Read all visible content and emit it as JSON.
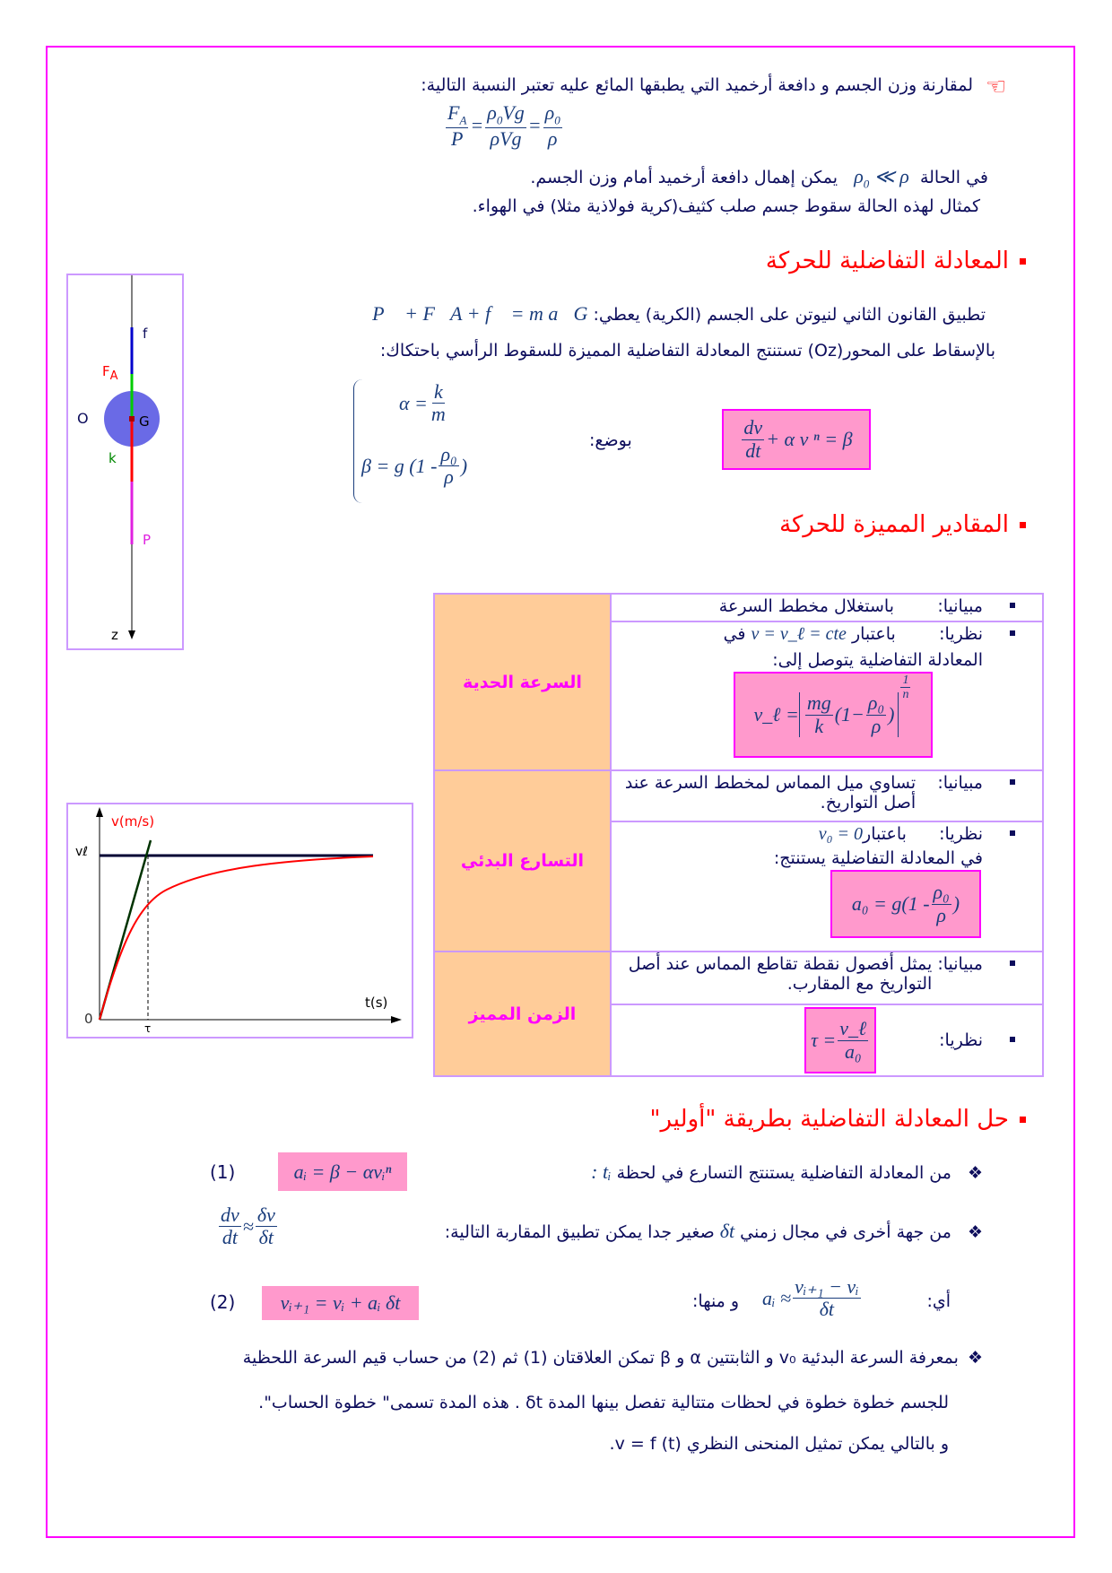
{
  "intro": {
    "line1": "لمقارنة وزن الجسم و دافعة أرخميد التي يطبقها المائع عليه تعتبر النسبة التالية:",
    "ratio": {
      "n1": "F",
      "n1sub": "A",
      "d1": "P",
      "n2": "ρ",
      "n2sub": "0",
      "n2b": "Vg",
      "d2": "ρVg",
      "n3": "ρ",
      "n3sub": "0",
      "d3": "ρ"
    },
    "line2a": "في الحالة",
    "cond": "ρ",
    "condsub": "0",
    "condb": " ≪ ρ",
    "line2b": "يمكن إهمال دافعة أرخميد أمام وزن الجسم.",
    "line3": "كمثال لهذه الحالة سقوط جسم صلب كثيف(كرية فولاذية مثلا) في الهواء."
  },
  "icons": {
    "pointing_hand": "pointing-hand-icon",
    "bullet": "square-bullet",
    "diamond": "diamond-bullet"
  },
  "section1": {
    "title": "المعادلة التفاضلية للحركة",
    "newton_text": "تطبيق القانون الثاني لنيوتن على الجسم (الكرية) يعطي:",
    "newton_eq": "P⃗ + F⃗A + f⃗ = m a⃗G",
    "projection": "بالإسقاط على المحور(Oz) تستنتج المعادلة التفاضلية المميزة للسقوط الرأسي باحتكاك:",
    "alpha_lhs": "α =",
    "alpha_num": "k",
    "alpha_den": "m",
    "beta_lhs": "β = g (1 -",
    "beta_num": "ρ₀",
    "beta_den": "ρ",
    "beta_close": ")",
    "posing": "بوضع:",
    "eq_num": "dv",
    "eq_den": "dt",
    "eq_rest": "+ α v ⁿ = β"
  },
  "diagram": {
    "f": "f",
    "FA": "F",
    "FAsub": "A",
    "O": "O",
    "G": "G",
    "k": "k",
    "P": "P",
    "z": "z"
  },
  "section2": {
    "title": "المقادير المميزة للحركة",
    "rows": [
      {
        "label": "السرعة الحدية",
        "graph": "مبيانيا:",
        "graph_text": "باستغلال مخطط السرعة",
        "theory": "نظريا:",
        "theory_text1": "باعتبار",
        "theory_math": "v = v_ℓ = cte",
        "theory_text2": "في",
        "theory_text3": "المعادلة التفاضلية يتوصل إلى:",
        "formula_lhs": "v_ℓ =",
        "f_num1": "mg",
        "f_den1": "k",
        "f_mid": "(1−",
        "f_num2": "ρ₀",
        "f_den2": "ρ",
        "f_close": ")",
        "f_exp_num": "1",
        "f_exp_den": "n"
      },
      {
        "label": "التسارع البدئي",
        "graph": "مبيانيا:",
        "graph_text": "تساوي ميل المماس لمخطط السرعة عند أصل التواريخ.",
        "theory": "نظريا:",
        "theory_text1": "باعتبار",
        "theory_math": "v₀ = 0",
        "theory_text2": "في المعادلة التفاضلية يستنتج:",
        "formula_lhs": "a₀ = g(1 -",
        "f_num": "ρ₀",
        "f_den": "ρ",
        "f_close": ")"
      },
      {
        "label": "الزمن المميز",
        "graph": "مبيانيا:",
        "graph_text": "يمثل أفصول نقطة تقاطع المماس عند أصل التواريخ مع المقارب.",
        "theory": "نظريا:",
        "formula_lhs": "τ =",
        "f_num": "v_ℓ",
        "f_den": "a₀"
      }
    ]
  },
  "graph": {
    "ylabel": "v(m/s)",
    "xlabel": "t(s)",
    "vl": "vℓ",
    "origin": "0",
    "tau": "τ",
    "colors": {
      "curve": "#ff0000",
      "asymptote": "#000033",
      "tangent": "#003300"
    }
  },
  "section3": {
    "title": "حل المعادلة التفاضلية بطريقة \"أولير\"",
    "item1": "من المعادلة التفاضلية يستنتج التسارع في لحظة",
    "item1_math": "tᵢ :",
    "eq1": "aᵢ = β − αvᵢⁿ",
    "eq1_tag": "(1)",
    "item2": "من جهة أخرى في مجال زمني",
    "item2_math": "δt",
    "item2b": "صغير جدا يمكن تطبيق المقاربة التالية:",
    "approx_n1": "dv",
    "approx_d1": "dt",
    "approx_op": "≈",
    "approx_n2": "δv",
    "approx_d2": "δt",
    "ai": "أي:",
    "ai_lhs": "aᵢ ≈",
    "ai_num": "vᵢ₊₁ − vᵢ",
    "ai_den": "δt",
    "hence": "و منها:",
    "eq2": "vᵢ₊₁ = vᵢ + aᵢ δt",
    "eq2_tag": "(2)",
    "para1": "بمعرفة السرعة البدئية v₀ و الثابتتين α و β تمكن العلاقتان (1) ثم (2) من حساب قيم السرعة اللحظية",
    "para2": "للجسم خطوة خطوة في لحظات متتالية تفصل بينها المدة δt . هذه المدة تسمى\" خطوة الحساب\".",
    "para3": "و بالتالي يمكن تمثيل المنحنى النظري  v = f (t)."
  },
  "colors": {
    "frame": "#ff00ff",
    "heading": "#ff0000",
    "label_bg": "#ffcc99",
    "label_text": "#ff00ff",
    "formula_bg": "#ff99cc",
    "table_border": "#cc99ff"
  }
}
